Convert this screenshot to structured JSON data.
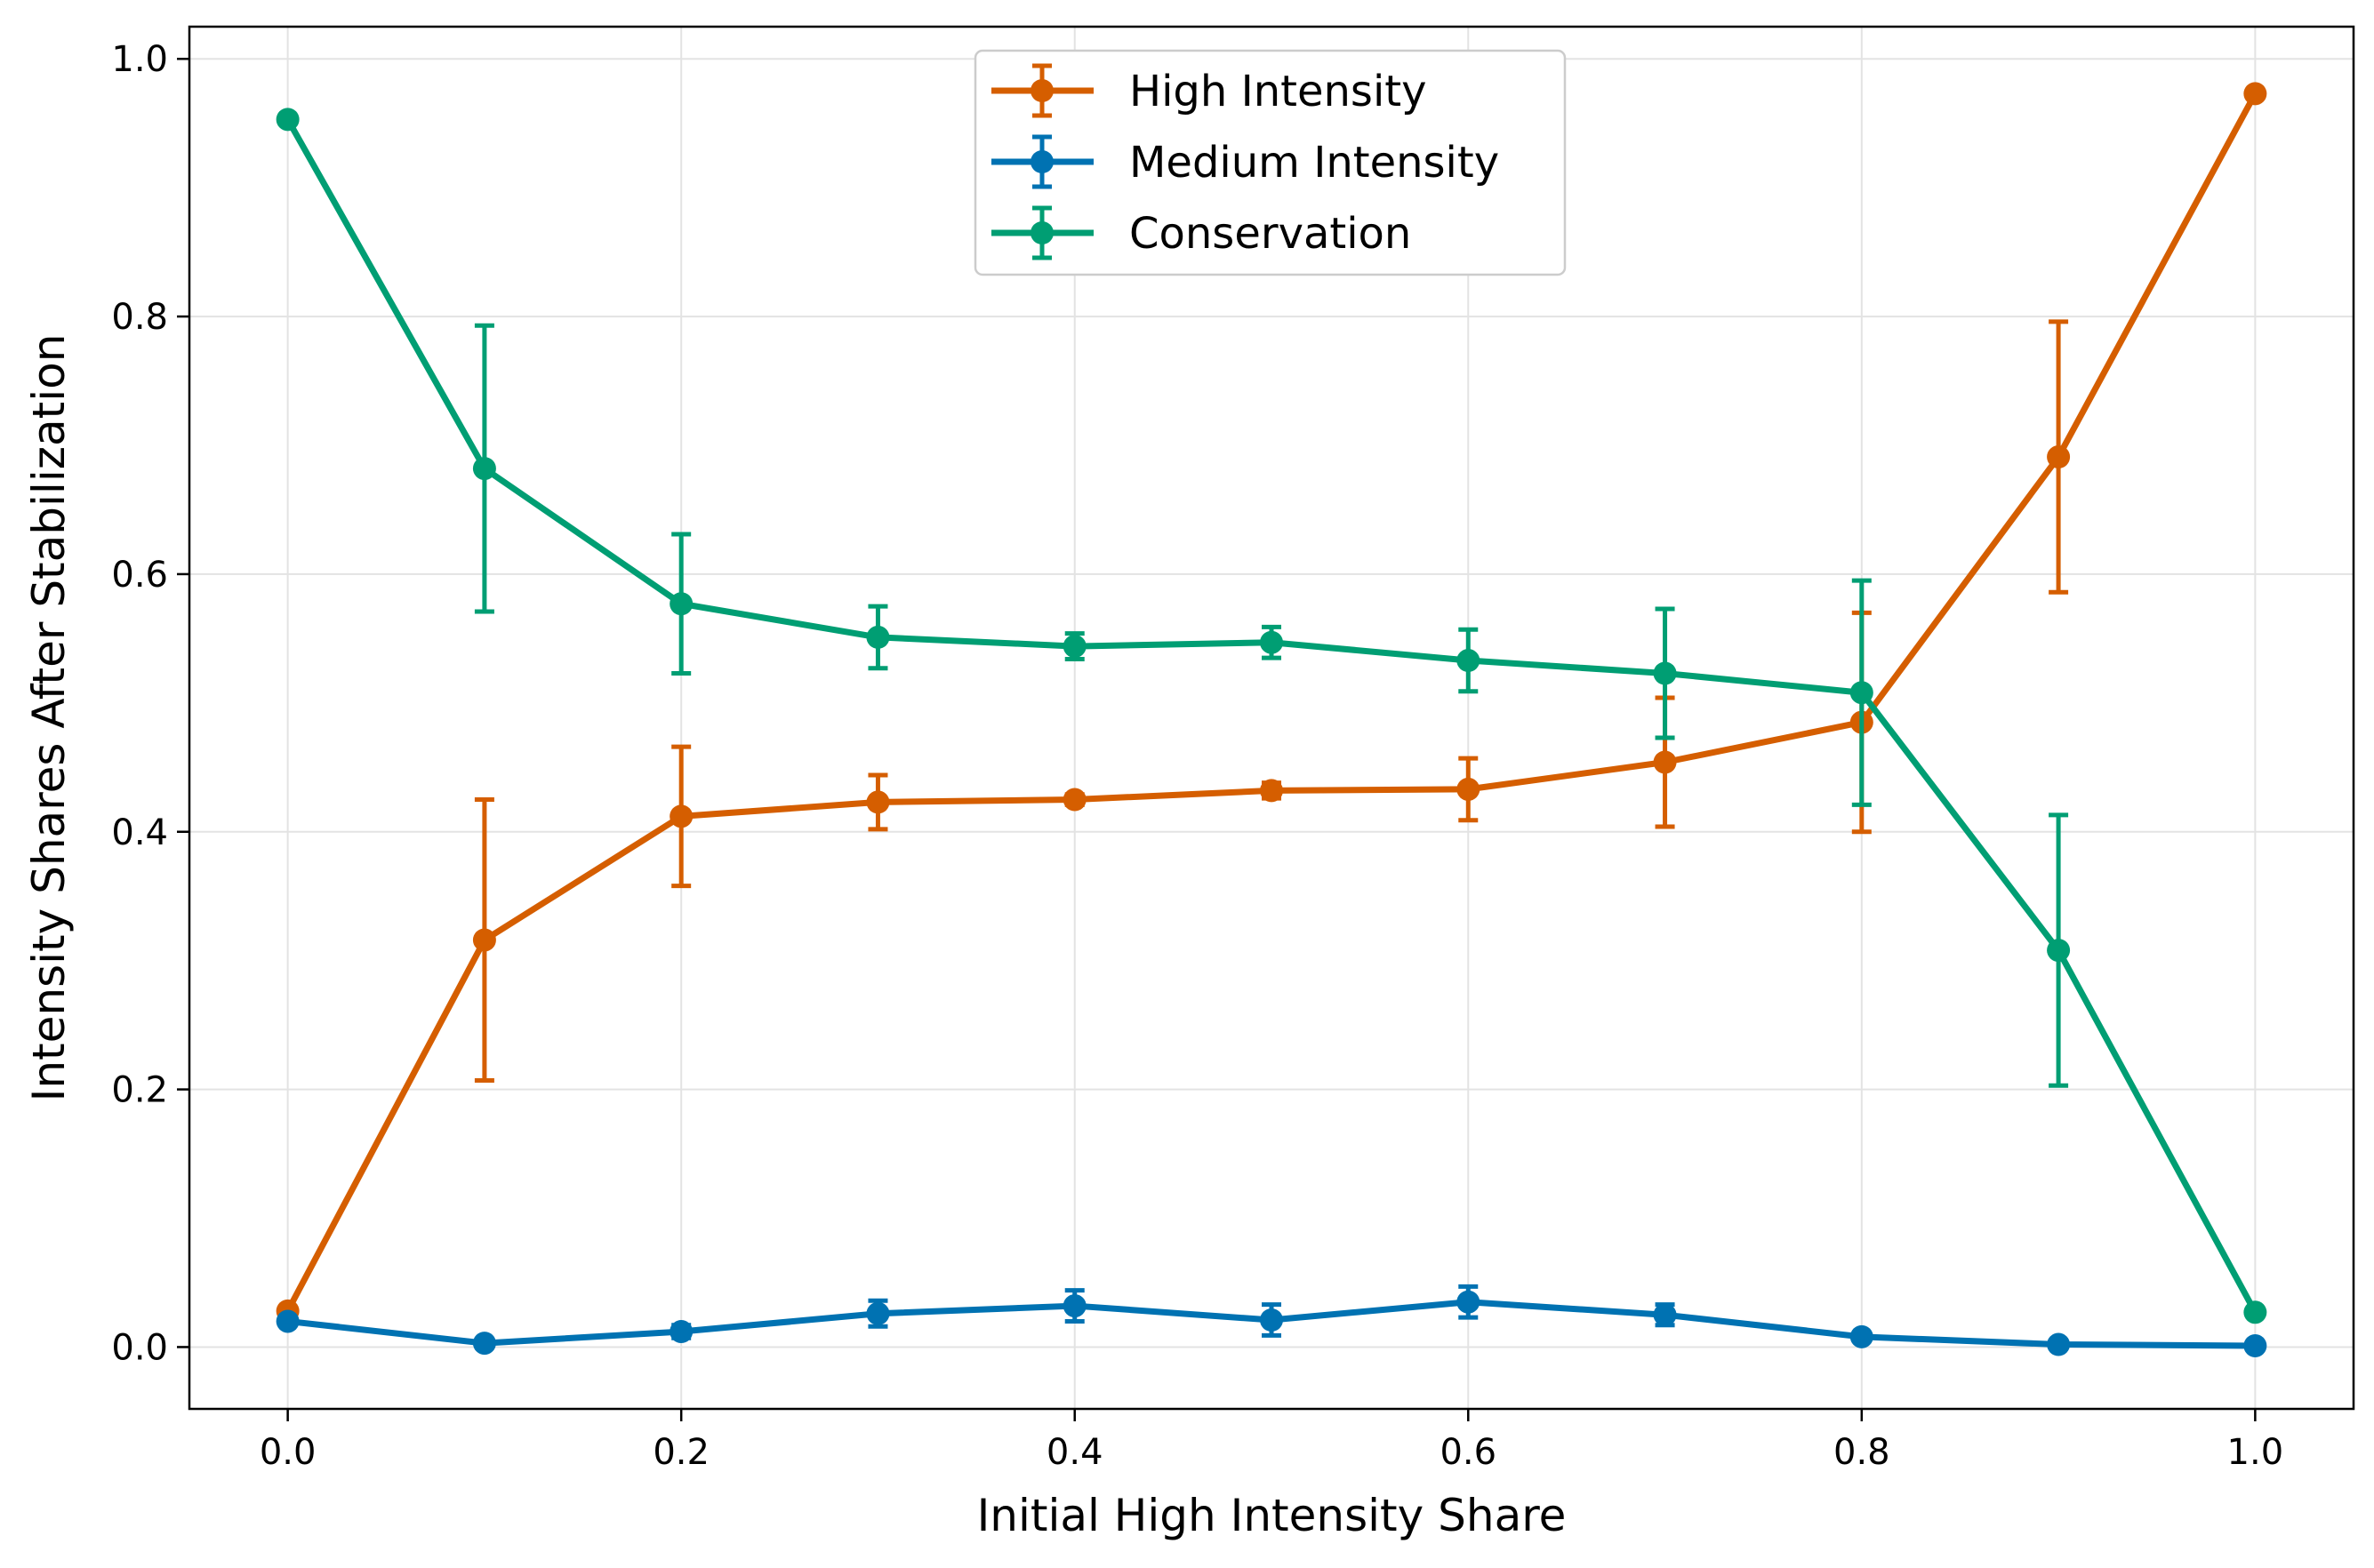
{
  "chart_data": {
    "type": "line",
    "xlabel": "Initial High Intensity Share",
    "ylabel": "Intensity Shares After Stabilization",
    "xlim": [
      -0.05,
      1.05
    ],
    "ylim": [
      -0.048,
      1.025
    ],
    "xticks": [
      0.0,
      0.2,
      0.4,
      0.6,
      0.8,
      1.0
    ],
    "xtick_labels": [
      "0.0",
      "0.2",
      "0.4",
      "0.6",
      "0.8",
      "1.0"
    ],
    "yticks": [
      0.0,
      0.2,
      0.4,
      0.6,
      0.8,
      1.0
    ],
    "ytick_labels": [
      "0.0",
      "0.2",
      "0.4",
      "0.6",
      "0.8",
      "1.0"
    ],
    "grid": true,
    "legend_position": "top-center",
    "x": [
      0.0,
      0.1,
      0.2,
      0.3,
      0.4,
      0.5,
      0.6,
      0.7,
      0.8,
      0.9,
      1.0
    ],
    "series": [
      {
        "name": "High Intensity",
        "color": "#D55E00",
        "values": [
          0.028,
          0.316,
          0.412,
          0.423,
          0.425,
          0.432,
          0.433,
          0.454,
          0.485,
          0.691,
          0.973
        ],
        "errors": [
          0.0,
          0.109,
          0.054,
          0.021,
          0.004,
          0.006,
          0.024,
          0.05,
          0.085,
          0.105,
          0.0
        ]
      },
      {
        "name": "Medium Intensity",
        "color": "#0072B2",
        "values": [
          0.02,
          0.003,
          0.012,
          0.026,
          0.032,
          0.021,
          0.035,
          0.025,
          0.008,
          0.002,
          0.001
        ],
        "errors": [
          0.0,
          0.0,
          0.005,
          0.01,
          0.012,
          0.012,
          0.012,
          0.008,
          0.0,
          0.0,
          0.0
        ]
      },
      {
        "name": "Conservation",
        "color": "#009E73",
        "values": [
          0.953,
          0.682,
          0.577,
          0.551,
          0.544,
          0.547,
          0.533,
          0.523,
          0.508,
          0.308,
          0.027
        ],
        "errors": [
          0.0,
          0.111,
          0.054,
          0.024,
          0.01,
          0.012,
          0.024,
          0.05,
          0.087,
          0.105,
          0.0
        ]
      }
    ]
  }
}
